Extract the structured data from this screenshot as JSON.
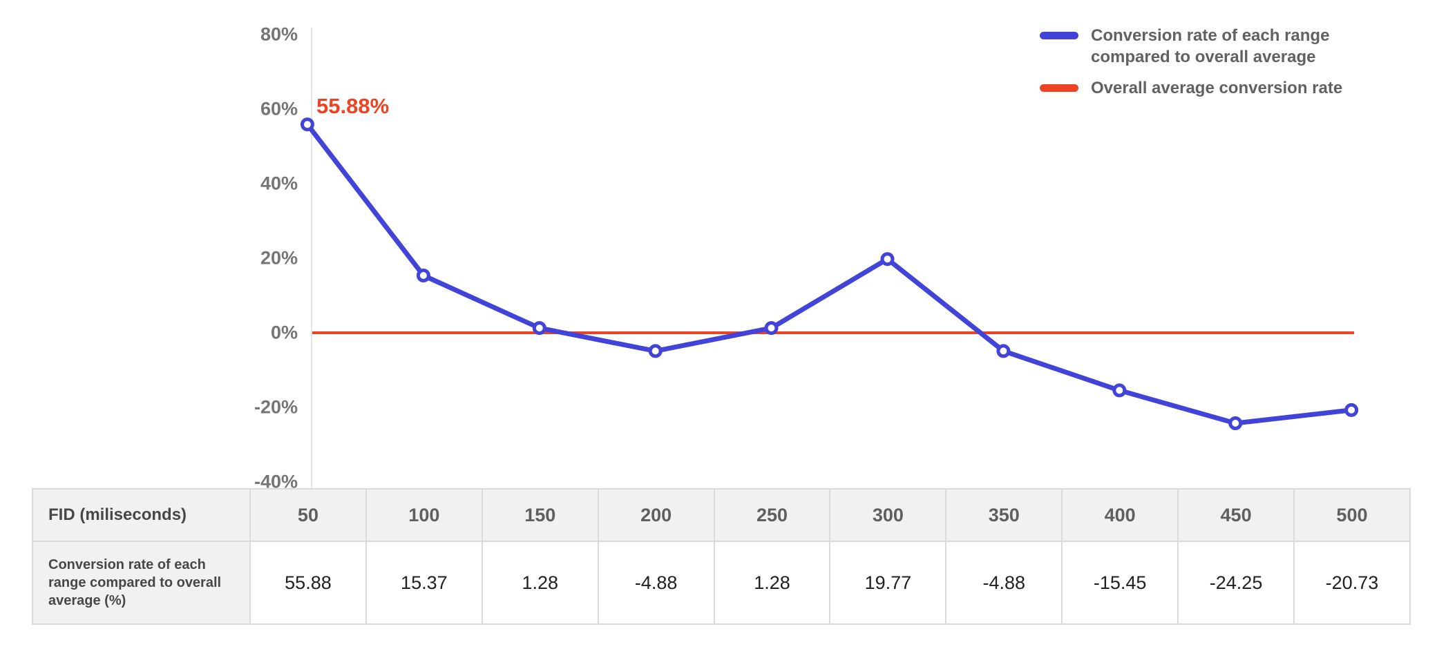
{
  "chart_data": {
    "type": "line",
    "title": "",
    "xlabel": "FID (miliseconds)",
    "ylabel": "",
    "x": [
      50,
      100,
      150,
      200,
      250,
      300,
      350,
      400,
      450,
      500
    ],
    "ylim": [
      -40,
      80
    ],
    "ytick_values": [
      80,
      60,
      40,
      20,
      0,
      -20,
      -40
    ],
    "ytick_labels": [
      "80%",
      "60%",
      "40%",
      "20%",
      "0%",
      "-20%",
      "-40%"
    ],
    "grid": false,
    "legend_position": "top-right",
    "series": [
      {
        "name": "Conversion rate of each range compared to overall average",
        "type": "line",
        "marker": "circle-open",
        "color": "#4244d9",
        "values": [
          55.88,
          15.37,
          1.28,
          -4.88,
          1.28,
          19.77,
          -4.88,
          -15.45,
          -24.25,
          -20.73
        ]
      },
      {
        "name": "Overall average conversion rate",
        "type": "horizontal-line",
        "color": "#ee4323",
        "value": 0
      }
    ],
    "annotations": [
      {
        "text": "55.88%",
        "color": "#ee4323",
        "target": "first-point"
      }
    ]
  },
  "legend": {
    "items": [
      {
        "label_line1": "Conversion rate of each range",
        "label_line2": "compared to overall average",
        "color": "#4244d9"
      },
      {
        "label_line1": "Overall average conversion rate",
        "label_line2": "",
        "color": "#ee4323"
      }
    ]
  },
  "table": {
    "header_label": "FID (miliseconds)",
    "columns": [
      "50",
      "100",
      "150",
      "200",
      "250",
      "300",
      "350",
      "400",
      "450",
      "500"
    ],
    "row_label": "Conversion rate of each range compared to overall average (%)",
    "values": [
      "55.88",
      "15.37",
      "1.28",
      "-4.88",
      "1.28",
      "19.77",
      "-4.88",
      "-15.45",
      "-24.25",
      "-20.73"
    ]
  },
  "colors": {
    "line_blue": "#4244d9",
    "line_red": "#ee4323",
    "axis_text": "#757575",
    "table_header_bg": "#f1f1f2",
    "table_border": "#dadada"
  }
}
